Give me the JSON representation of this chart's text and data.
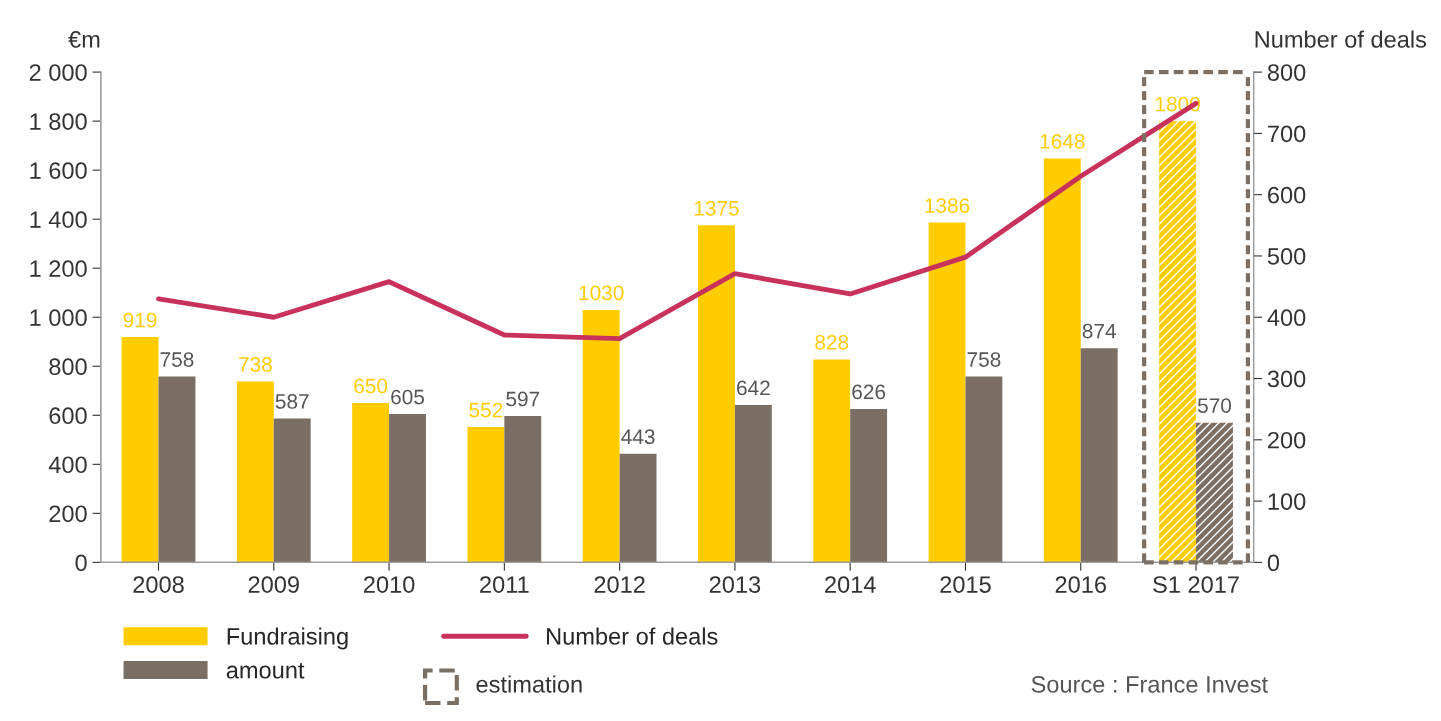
{
  "chart_data": {
    "type": "bar",
    "ylabel": "€m",
    "y2label": "Number of deals",
    "categories": [
      "2008",
      "2009",
      "2010",
      "2011",
      "2012",
      "2013",
      "2014",
      "2015",
      "2016",
      "S1 2017"
    ],
    "series": [
      {
        "name": "Fundraising",
        "color": "#ffcc00",
        "values": [
          919,
          738,
          650,
          552,
          1030,
          1375,
          828,
          1386,
          1648,
          1800
        ],
        "value_labels": [
          "919",
          "738",
          "650",
          "552",
          "1030",
          "1375",
          "828",
          "1386",
          "1648",
          "1800"
        ]
      },
      {
        "name": "amount",
        "color": "#7a6e65",
        "values": [
          758,
          587,
          605,
          597,
          443,
          642,
          626,
          758,
          874,
          570
        ],
        "value_labels": [
          "758",
          "587",
          "605",
          "597",
          "443",
          "642",
          "626",
          "758",
          "874",
          "570"
        ]
      },
      {
        "name": "Number of deals",
        "type": "line",
        "axis": "y2",
        "color": "#c8325a",
        "values": [
          430,
          400,
          458,
          371,
          365,
          471,
          438,
          498,
          630,
          749
        ]
      }
    ],
    "ylim": [
      0,
      2000
    ],
    "yticks": [
      0,
      {
        "value": 200,
        "label": "200"
      },
      {
        "value": 400,
        "label": "400"
      },
      {
        "value": 600,
        "label": "600"
      },
      {
        "value": 800,
        "label": "800"
      },
      {
        "value": 1000,
        "label": "1 000"
      },
      {
        "value": 1200,
        "label": "1 200"
      },
      {
        "value": 1400,
        "label": "1 400"
      },
      {
        "value": 1600,
        "label": "1 600"
      },
      {
        "value": 1800,
        "label": "1 800"
      },
      {
        "value": 2000,
        "label": "2 000"
      }
    ],
    "y2lim": [
      0,
      800
    ],
    "y2ticks": [
      0,
      100,
      200,
      300,
      400,
      500,
      600,
      700,
      800
    ],
    "legend": "bottom",
    "grid": false,
    "marker": "none",
    "line_style": "solid",
    "annotations": [
      "estimation",
      "Source : France Invest"
    ]
  }
}
